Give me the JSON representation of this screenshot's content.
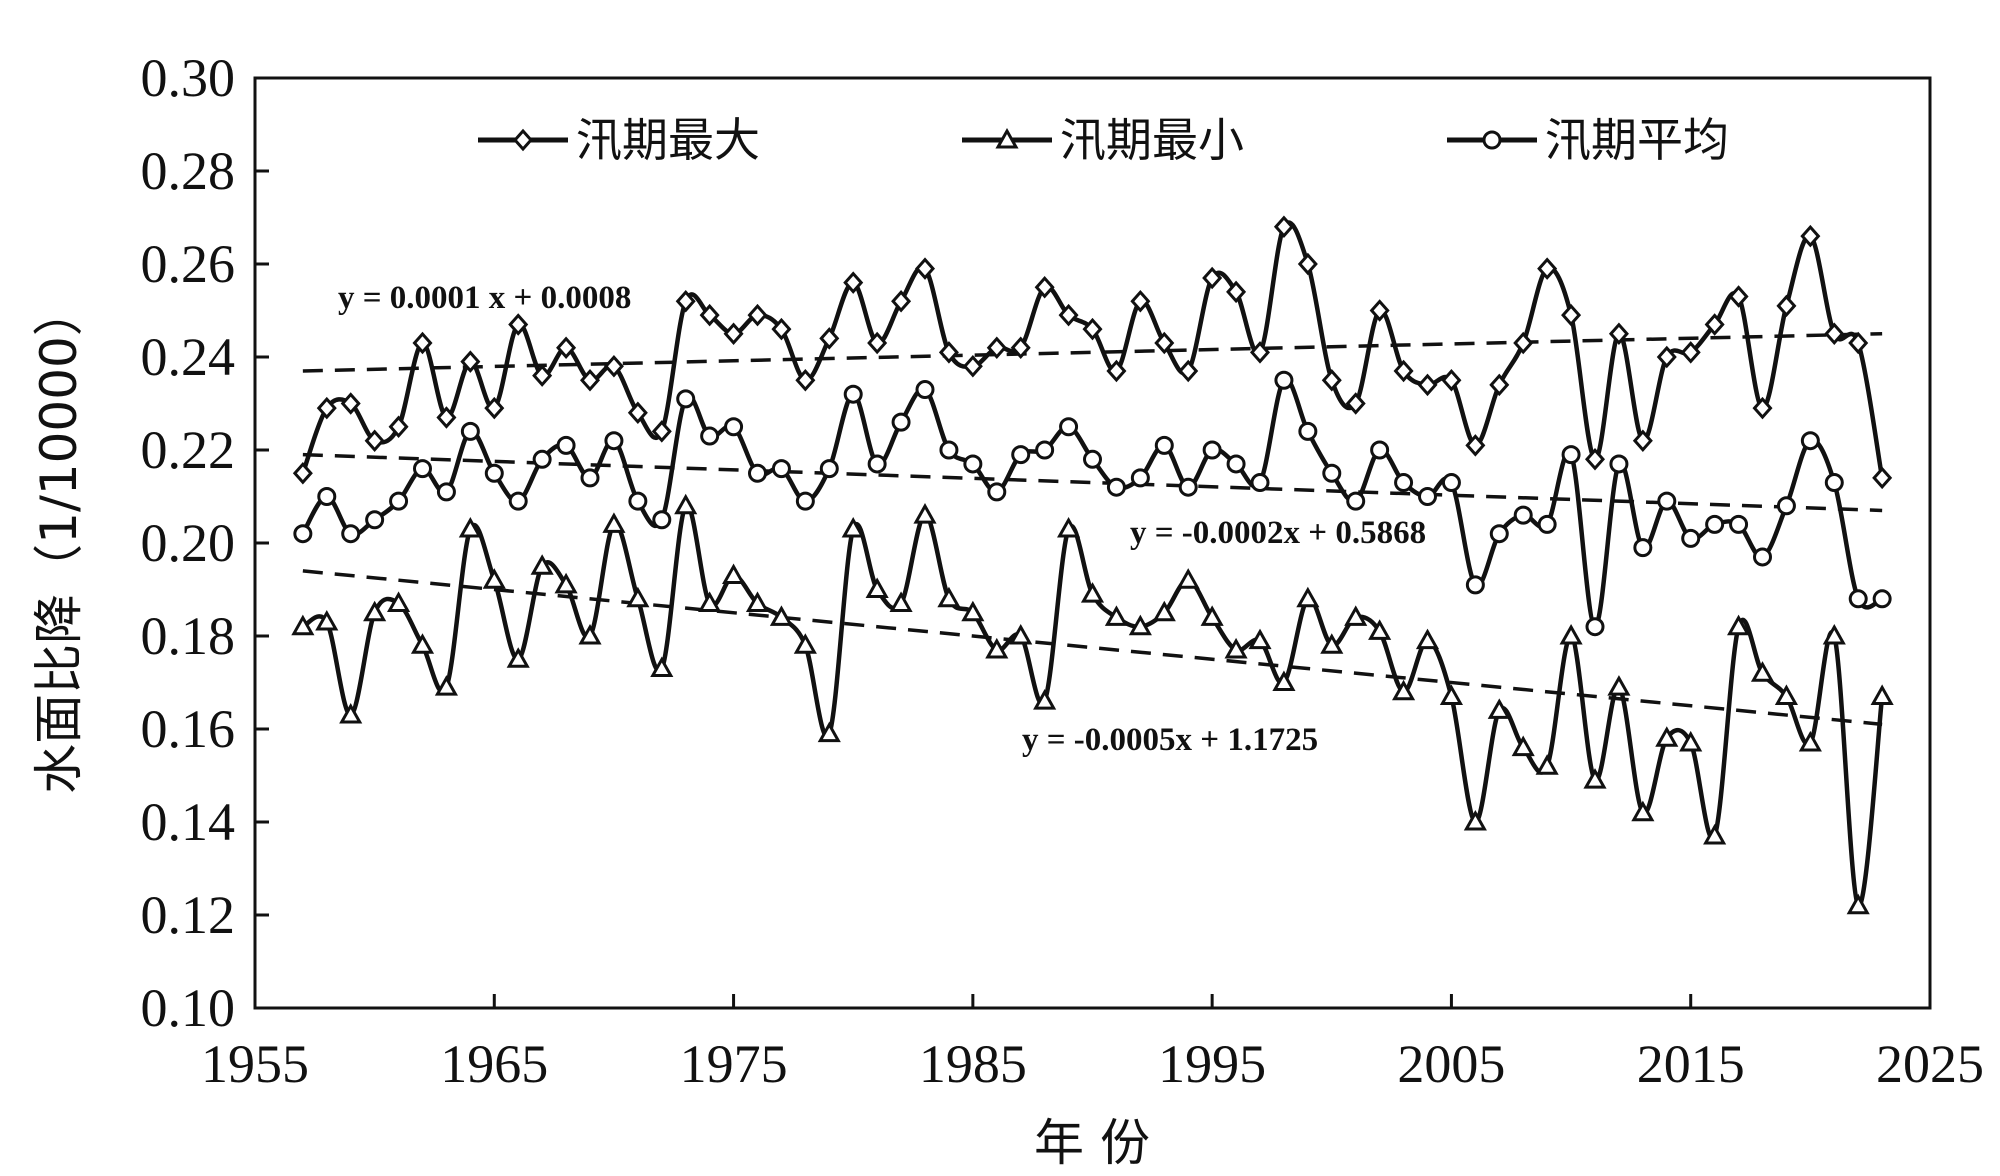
{
  "chart_data": {
    "type": "line",
    "xlabel": "年 份",
    "ylabel": "水面比降（1/10000）",
    "xlim": [
      1955,
      2025
    ],
    "ylim": [
      0.1,
      0.3
    ],
    "x_ticks": [
      "1955",
      "1965",
      "1975",
      "1985",
      "1995",
      "2005",
      "2015",
      "2025"
    ],
    "y_ticks": [
      "0.10",
      "0.12",
      "0.14",
      "0.16",
      "0.18",
      "0.20",
      "0.22",
      "0.24",
      "0.26",
      "0.28",
      "0.30"
    ],
    "grid": false,
    "legend_position": "top",
    "x": [
      1957,
      1958,
      1959,
      1960,
      1961,
      1962,
      1963,
      1964,
      1965,
      1966,
      1967,
      1968,
      1969,
      1970,
      1971,
      1972,
      1973,
      1974,
      1975,
      1976,
      1977,
      1978,
      1979,
      1980,
      1981,
      1982,
      1983,
      1984,
      1985,
      1986,
      1987,
      1988,
      1989,
      1990,
      1991,
      1992,
      1993,
      1994,
      1995,
      1996,
      1997,
      1998,
      1999,
      2000,
      2001,
      2002,
      2003,
      2004,
      2005,
      2006,
      2007,
      2008,
      2009,
      2010,
      2011,
      2012,
      2013,
      2014,
      2015,
      2016,
      2017,
      2018,
      2019,
      2020,
      2021,
      2022,
      2023
    ],
    "series": [
      {
        "name": "汛期最大",
        "marker": "diamond",
        "values": [
          0.215,
          0.229,
          0.23,
          0.222,
          0.225,
          0.243,
          0.227,
          0.239,
          0.229,
          0.247,
          0.236,
          0.242,
          0.235,
          0.238,
          0.228,
          0.224,
          0.252,
          0.249,
          0.245,
          0.249,
          0.246,
          0.235,
          0.244,
          0.256,
          0.243,
          0.252,
          0.259,
          0.241,
          0.238,
          0.242,
          0.242,
          0.255,
          0.249,
          0.246,
          0.237,
          0.252,
          0.243,
          0.237,
          0.257,
          0.254,
          0.241,
          0.268,
          0.26,
          0.235,
          0.23,
          0.25,
          0.237,
          0.234,
          0.235,
          0.221,
          0.234,
          0.243,
          0.259,
          0.249,
          0.218,
          0.245,
          0.222,
          0.24,
          0.241,
          0.247,
          0.253,
          0.229,
          0.251,
          0.266,
          0.245,
          0.243,
          0.214
        ]
      },
      {
        "name": "汛期最小",
        "marker": "triangle",
        "values": [
          0.182,
          0.183,
          0.163,
          0.185,
          0.187,
          0.178,
          0.169,
          0.203,
          0.192,
          0.175,
          0.195,
          0.191,
          0.18,
          0.204,
          0.188,
          0.173,
          0.208,
          0.187,
          0.193,
          0.187,
          0.184,
          0.178,
          0.159,
          0.203,
          0.19,
          0.187,
          0.206,
          0.188,
          0.185,
          0.177,
          0.18,
          0.166,
          0.203,
          0.189,
          0.184,
          0.182,
          0.185,
          0.192,
          0.184,
          0.177,
          0.179,
          0.17,
          0.188,
          0.178,
          0.184,
          0.181,
          0.168,
          0.179,
          0.167,
          0.14,
          0.164,
          0.156,
          0.152,
          0.18,
          0.149,
          0.169,
          0.142,
          0.158,
          0.157,
          0.137,
          0.182,
          0.172,
          0.167,
          0.157,
          0.18,
          0.122,
          0.167
        ]
      },
      {
        "name": "汛期平均",
        "marker": "circle",
        "values": [
          0.202,
          0.21,
          0.202,
          0.205,
          0.209,
          0.216,
          0.211,
          0.224,
          0.215,
          0.209,
          0.218,
          0.221,
          0.214,
          0.222,
          0.209,
          0.205,
          0.231,
          0.223,
          0.225,
          0.215,
          0.216,
          0.209,
          0.216,
          0.232,
          0.217,
          0.226,
          0.233,
          0.22,
          0.217,
          0.211,
          0.219,
          0.22,
          0.225,
          0.218,
          0.212,
          0.214,
          0.221,
          0.212,
          0.22,
          0.217,
          0.213,
          0.235,
          0.224,
          0.215,
          0.209,
          0.22,
          0.213,
          0.21,
          0.213,
          0.191,
          0.202,
          0.206,
          0.204,
          0.219,
          0.182,
          0.217,
          0.199,
          0.209,
          0.201,
          0.204,
          0.204,
          0.197,
          0.208,
          0.222,
          0.213,
          0.188,
          0.188
        ]
      }
    ],
    "trendlines": [
      {
        "label": "y = 0.0001 x + 0.0008",
        "x": [
          1957,
          2023
        ],
        "y": [
          0.237,
          0.245
        ]
      },
      {
        "label": "y = -0.0002x + 0.5868",
        "x": [
          1957,
          2023
        ],
        "y": [
          0.219,
          0.207
        ]
      },
      {
        "label": "y = -0.0005x + 1.1725",
        "x": [
          1957,
          2023
        ],
        "y": [
          0.194,
          0.161
        ]
      }
    ]
  }
}
